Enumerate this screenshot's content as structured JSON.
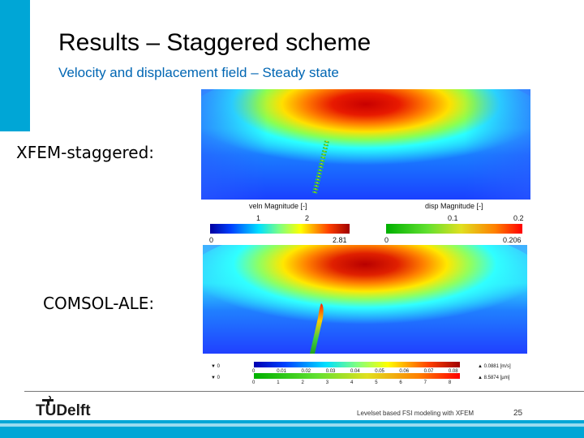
{
  "slide": {
    "title": "Results – Staggered scheme",
    "subtitle": "Velocity and displacement field – Steady state",
    "accent_color": "#00a6d6",
    "subtitle_color": "#0066b3"
  },
  "panels": {
    "xfem_label": "XFEM-staggered:",
    "comsol_label": "COMSOL-ALE:"
  },
  "xfem_colorbars": {
    "veln": {
      "label": "veln Magnitude [-]",
      "ticks": [
        "1",
        "2"
      ],
      "min": "0",
      "max": "2.81"
    },
    "disp": {
      "label": "disp Magnitude [-]",
      "ticks": [
        "0.1",
        "0.2"
      ],
      "min": "0",
      "max": "0.206"
    }
  },
  "comsol_colorbars": {
    "velocity": {
      "min_marker": "▼ 0",
      "ticks": [
        "0",
        "0.01",
        "0.02",
        "0.03",
        "0.04",
        "0.05",
        "0.06",
        "0.07",
        "0.08"
      ],
      "max_marker": "▲ 0.0881 [m/s]"
    },
    "displacement": {
      "min_marker": "▼ 0",
      "ticks": [
        "0",
        "1",
        "2",
        "3",
        "4",
        "5",
        "6",
        "7",
        "8"
      ],
      "max_marker": "▲ 8.5874 [µm]"
    }
  },
  "footer": {
    "logo_text": "TUDelft",
    "presentation_title": "Levelset based FSI modeling with XFEM",
    "page_number": "25"
  },
  "icons": {
    "logo": "tudelft-flame-logo"
  }
}
